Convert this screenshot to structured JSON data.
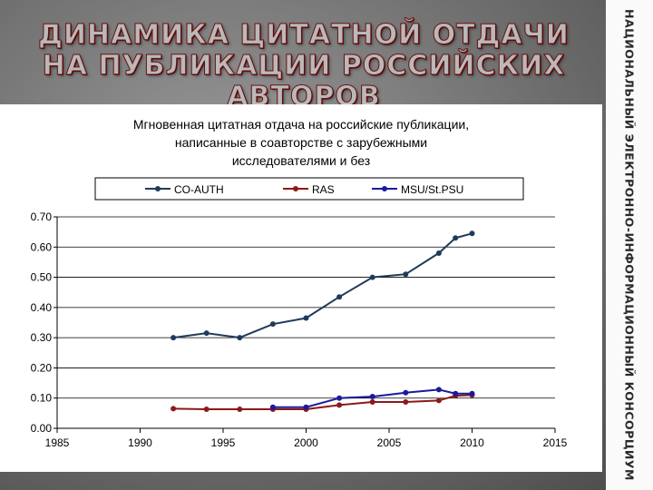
{
  "slide_title": "ДИНАМИКА ЦИТАТНОЙ ОТДАЧИ НА ПУБЛИКАЦИИ РОССИЙСКИХ АВТОРОВ",
  "side_banner": "НАЦИОНАЛЬНЫЙ ЭЛЕКТРОННО-ИНФОРМАЦИОННЫЙ КОНСОРЦИУМ",
  "colors": {
    "co_auth": "#1f3b5a",
    "ras": "#8b1a1a",
    "msu": "#1a1a9c"
  },
  "chart_data": {
    "type": "line",
    "title_lines": [
      "Мгновенная цитатная отдача на российские публикации,",
      "написанные в соавторстве с зарубежными",
      "исследователями и без"
    ],
    "xlim": [
      1985,
      2015
    ],
    "x_ticks": [
      "1985",
      "1990",
      "1995",
      "2000",
      "2005",
      "2010",
      "2015"
    ],
    "x_tick_values": [
      1985,
      1990,
      1995,
      2000,
      2005,
      2010,
      2015
    ],
    "ylim": [
      0,
      0.7
    ],
    "y_ticks": [
      "0.00",
      "0.10",
      "0.20",
      "0.30",
      "0.40",
      "0.50",
      "0.60",
      "0.70"
    ],
    "y_tick_values": [
      0,
      0.1,
      0.2,
      0.3,
      0.4,
      0.5,
      0.6,
      0.7
    ],
    "grid": "horizontal",
    "legend_position": "top",
    "series": [
      {
        "name": "CO-AUTH",
        "x": [
          1992,
          1994,
          1996,
          1998,
          2000,
          2002,
          2004,
          2006,
          2008,
          2009,
          2010
        ],
        "y": [
          0.3,
          0.315,
          0.3,
          0.345,
          0.365,
          0.435,
          0.5,
          0.51,
          0.58,
          0.63,
          0.645
        ]
      },
      {
        "name": "RAS",
        "x": [
          1992,
          1994,
          1996,
          1998,
          2000,
          2002,
          2004,
          2006,
          2008,
          2009,
          2010
        ],
        "y": [
          0.065,
          0.063,
          0.063,
          0.063,
          0.063,
          0.077,
          0.087,
          0.087,
          0.092,
          0.108,
          0.11
        ]
      },
      {
        "name": "MSU/St.PSU",
        "x": [
          1998,
          2000,
          2002,
          2004,
          2006,
          2008,
          2009,
          2010
        ],
        "y": [
          0.07,
          0.07,
          0.1,
          0.105,
          0.118,
          0.128,
          0.115,
          0.115
        ]
      }
    ]
  }
}
